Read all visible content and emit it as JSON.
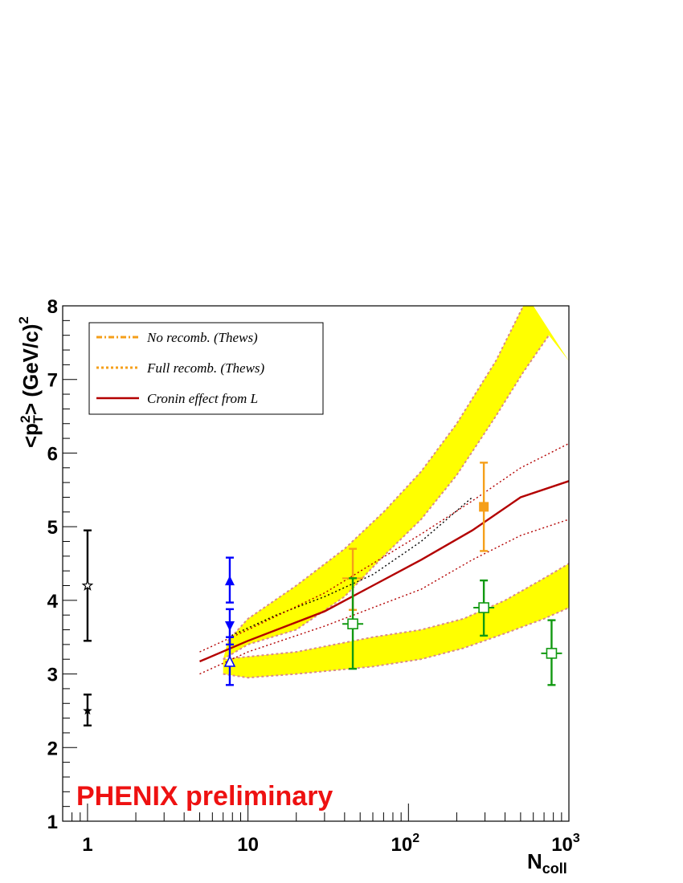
{
  "chart_data": {
    "type": "scatter",
    "title": "",
    "xlabel": "N",
    "xlabel_sub": "coll",
    "ylabel_base": "<p",
    "ylabel_sup": "2",
    "ylabel_sub": "T",
    "ylabel_rest": "> (GeV/c)",
    "ylabel_sup2": "2",
    "xscale": "log",
    "xlim": [
      0.7,
      1000
    ],
    "ylim": [
      1,
      8
    ],
    "yticks": [
      "1",
      "2",
      "3",
      "4",
      "5",
      "6",
      "7",
      "8"
    ],
    "xticks": [
      {
        "value": 1,
        "base": "1",
        "exp": ""
      },
      {
        "value": 10,
        "base": "10",
        "exp": ""
      },
      {
        "value": 100,
        "base": "10",
        "exp": "2"
      },
      {
        "value": 1000,
        "base": "10",
        "exp": "3"
      }
    ],
    "legend": {
      "position": "top-left",
      "entries": [
        {
          "label": "No recomb. (Thews)",
          "color": "#f59f1a",
          "style": "dashdot"
        },
        {
          "label": "Full recomb. (Thews)",
          "color": "#f59f1a",
          "style": "dotted"
        },
        {
          "label": "Cronin effect from L",
          "color": "#b30000",
          "style": "solid"
        }
      ]
    },
    "bands": [
      {
        "name": "No recomb. (Thews)",
        "color": "#ffff00",
        "edge_color": "#d98a8a",
        "upper": [
          [
            7.5,
            3.45
          ],
          [
            10,
            3.75
          ],
          [
            20,
            4.2
          ],
          [
            40,
            4.7
          ],
          [
            70,
            5.2
          ],
          [
            120,
            5.75
          ],
          [
            200,
            6.4
          ],
          [
            350,
            7.25
          ],
          [
            520,
            8.0
          ]
        ],
        "upper_right": [
          [
            600,
            8.0
          ],
          [
            1000,
            7.25
          ]
        ],
        "lower": [
          [
            7,
            3.2
          ],
          [
            10,
            3.4
          ],
          [
            20,
            3.6
          ],
          [
            40,
            4.05
          ],
          [
            70,
            4.6
          ],
          [
            120,
            5.1
          ],
          [
            200,
            5.7
          ],
          [
            350,
            6.5
          ],
          [
            520,
            7.1
          ],
          [
            750,
            7.6
          ]
        ]
      },
      {
        "name": "Full recomb. (Thews)",
        "color": "#ffff00",
        "edge_color": "#d98a8a",
        "upper": [
          [
            7,
            3.2
          ],
          [
            20,
            3.3
          ],
          [
            60,
            3.5
          ],
          [
            120,
            3.6
          ],
          [
            220,
            3.75
          ],
          [
            400,
            4.0
          ],
          [
            700,
            4.3
          ],
          [
            1000,
            4.5
          ]
        ],
        "lower": [
          [
            7,
            3.0
          ],
          [
            10,
            2.95
          ],
          [
            20,
            3.0
          ],
          [
            60,
            3.1
          ],
          [
            120,
            3.2
          ],
          [
            220,
            3.35
          ],
          [
            400,
            3.55
          ],
          [
            700,
            3.75
          ],
          [
            1000,
            3.9
          ]
        ],
        "center_dotted": [
          [
            7.5,
            3.5
          ],
          [
            15,
            3.8
          ],
          [
            30,
            4.05
          ],
          [
            60,
            4.35
          ],
          [
            120,
            4.8
          ],
          [
            250,
            5.4
          ]
        ]
      }
    ],
    "curves": [
      {
        "name": "Cronin effect from L",
        "color": "#b30000",
        "style": "solid",
        "points": [
          [
            5,
            3.17
          ],
          [
            10,
            3.45
          ],
          [
            30,
            3.85
          ],
          [
            60,
            4.2
          ],
          [
            120,
            4.55
          ],
          [
            250,
            4.95
          ],
          [
            500,
            5.4
          ],
          [
            1000,
            5.62
          ]
        ]
      },
      {
        "name": "Cronin upper",
        "color": "#b30000",
        "style": "dotted",
        "points": [
          [
            5,
            3.3
          ],
          [
            10,
            3.6
          ],
          [
            30,
            4.1
          ],
          [
            60,
            4.5
          ],
          [
            120,
            4.9
          ],
          [
            250,
            5.35
          ],
          [
            500,
            5.8
          ],
          [
            1000,
            6.13
          ]
        ]
      },
      {
        "name": "Cronin lower",
        "color": "#b30000",
        "style": "dotted",
        "points": [
          [
            5,
            3.0
          ],
          [
            10,
            3.3
          ],
          [
            30,
            3.65
          ],
          [
            60,
            3.9
          ],
          [
            120,
            4.15
          ],
          [
            250,
            4.55
          ],
          [
            500,
            4.88
          ],
          [
            1000,
            5.1
          ]
        ]
      }
    ],
    "points": [
      {
        "x": 1.0,
        "y": 4.2,
        "ylow": 3.45,
        "yhigh": 4.95,
        "marker": "open-star",
        "color": "#000000"
      },
      {
        "x": 1.0,
        "y": 2.5,
        "ylow": 2.3,
        "yhigh": 2.72,
        "marker": "star",
        "color": "#000000"
      },
      {
        "x": 7.7,
        "y": 4.27,
        "ylow": 3.97,
        "yhigh": 4.58,
        "marker": "triangle-up",
        "color": "#0000ff"
      },
      {
        "x": 7.7,
        "y": 3.65,
        "ylow": 3.4,
        "yhigh": 3.88,
        "marker": "triangle-down",
        "color": "#0000ff"
      },
      {
        "x": 7.7,
        "y": 3.17,
        "ylow": 2.85,
        "yhigh": 3.5,
        "marker": "open-triangle",
        "color": "#0000ff"
      },
      {
        "x": 45,
        "y": 4.3,
        "ylow": 3.87,
        "yhigh": 4.7,
        "marker": "dash",
        "color": "#f59f1a"
      },
      {
        "x": 295,
        "y": 5.27,
        "ylow": 4.67,
        "yhigh": 5.87,
        "marker": "square",
        "color": "#f59f1a"
      },
      {
        "x": 45,
        "y": 3.68,
        "ylow": 3.07,
        "yhigh": 4.3,
        "marker": "open-square",
        "color": "#119911"
      },
      {
        "x": 295,
        "y": 3.9,
        "ylow": 3.52,
        "yhigh": 4.27,
        "marker": "open-square",
        "color": "#119911"
      },
      {
        "x": 780,
        "y": 3.28,
        "ylow": 2.85,
        "yhigh": 3.73,
        "marker": "open-square",
        "color": "#119911"
      }
    ],
    "annotation": {
      "text": "PHENIX preliminary",
      "color": "#ee1111"
    }
  }
}
